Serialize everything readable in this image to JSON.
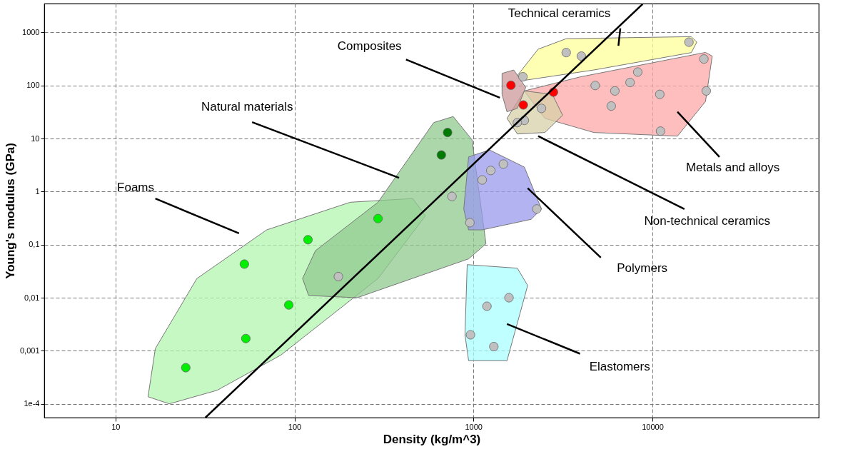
{
  "chart_data": {
    "type": "scatter",
    "xlabel": "Density (kg/m^3)",
    "ylabel": "Young's modulus (GPa)",
    "log": "xy",
    "grid": true,
    "xlim": [
      4,
      85000
    ],
    "xticks": [
      10,
      100,
      1000,
      10000
    ],
    "ylim": [
      5.5e-05,
      3500
    ],
    "yticks": [
      {
        "value": 0.0001,
        "label": "1e-4"
      },
      {
        "value": 0.001,
        "label": "0,001"
      },
      {
        "value": 0.01,
        "label": "0,01"
      },
      {
        "value": 0.1,
        "label": "0,1"
      },
      1,
      10,
      100,
      1000
    ],
    "series": [
      {
        "type": "area",
        "color": "#b3f5b0",
        "x": [
          15.2,
          16.7,
          28.5,
          70,
          205,
          458,
          539,
          293,
          84,
          37,
          20,
          15.2
        ],
        "values": [
          0.000136,
          0.0011,
          0.023,
          0.19,
          0.63,
          0.74,
          0.35,
          0.023,
          0.00083,
          0.00018,
          0.0001,
          0.000136
        ]
      },
      {
        "type": "area",
        "color": "#8fc98f",
        "x": [
          111,
          131,
          293,
          600,
          771,
          982,
          1175,
          940,
          224,
          120,
          111
        ],
        "values": [
          0.023,
          0.077,
          0.63,
          20,
          26,
          9.5,
          0.104,
          0.054,
          0.01,
          0.011,
          0.023
        ]
      },
      {
        "type": "area",
        "color": "#aaffff",
        "x": [
          923,
          1760,
          2010,
          1540,
          940,
          897,
          923
        ],
        "values": [
          0.042,
          0.036,
          0.017,
          0.00065,
          0.00065,
          0.002,
          0.042
        ]
      },
      {
        "type": "area",
        "color": "#9999ee",
        "x": [
          883,
          940,
          1230,
          1925,
          2400,
          2100,
          1120,
          940,
          883
        ],
        "values": [
          0.47,
          4.5,
          6.1,
          2.9,
          0.47,
          0.3,
          0.19,
          0.19,
          0.47
        ]
      },
      {
        "type": "area",
        "color": "#ffff99",
        "x": [
          1760,
          2300,
          3300,
          16500,
          17700,
          16500,
          4710,
          1925,
          1760
        ],
        "values": [
          154,
          484,
          762,
          833,
          656,
          417,
          196,
          125,
          154
        ]
      },
      {
        "type": "area",
        "color": "#ffa8a8",
        "x": [
          1925,
          3940,
          19800,
          21600,
          19800,
          13800,
          4710,
          2510,
          1925
        ],
        "values": [
          79,
          145,
          420,
          358,
          50,
          11.1,
          13,
          24,
          79
        ]
      },
      {
        "type": "area",
        "color": "#d8d0a8",
        "x": [
          1540,
          1925,
          2760,
          3150,
          2510,
          1760,
          1540
        ],
        "values": [
          24,
          79,
          68,
          27.5,
          13,
          12.2,
          24
        ]
      },
      {
        "type": "area",
        "color": "#cc9999",
        "x": [
          1445,
          1680,
          1960,
          1760,
          1540,
          1445,
          1445
        ],
        "values": [
          169,
          196,
          92,
          37,
          32,
          68,
          169
        ]
      },
      {
        "color": "#00ee00",
        "marker": "circle",
        "x": [
          24.7,
          52.5,
          119,
          293,
          93,
          53.5
        ],
        "values": [
          0.00048,
          0.043,
          0.124,
          0.31,
          0.0073,
          0.0017
        ]
      },
      {
        "color": "#007a00",
        "marker": "circle",
        "x": [
          662,
          717
        ],
        "values": [
          4.9,
          13
        ]
      },
      {
        "color": "#ff0000",
        "marker": "circle",
        "x": [
          1620,
          1900,
          2800
        ],
        "values": [
          101,
          43,
          75
        ]
      },
      {
        "color": "#c0c0c0",
        "marker": "circle",
        "x": [
          176,
          759,
          1250,
          1470,
          1120,
          955,
          2260,
          1190,
          1580,
          963,
          1300,
          1925,
          2400,
          1760,
          6170,
          19400,
          11100,
          20000,
          7500,
          5890,
          11000,
          4790,
          3300,
          4010,
          16000,
          1890,
          8280
        ],
        "values": [
          0.025,
          0.81,
          2.5,
          3.3,
          1.66,
          0.26,
          0.47,
          0.0069,
          0.01,
          0.002,
          0.0012,
          22,
          37,
          20,
          79,
          316,
          13.8,
          79,
          114,
          41,
          68,
          100,
          417,
          358,
          656,
          146,
          179
        ]
      },
      {
        "type": "line",
        "color": "#000000",
        "x": [
          31.8,
          8830
        ],
        "values": [
          5.5e-05,
          3440
        ]
      },
      {
        "type": "line",
        "color": "#000000",
        "x": [
          6620,
          6460
        ],
        "values": [
          1200,
          562
        ]
      },
      {
        "type": "line",
        "color": "#000000",
        "x": [
          420,
          1405
        ],
        "values": [
          308,
          59
        ]
      },
      {
        "type": "line",
        "color": "#000000",
        "x": [
          58,
          384
        ],
        "values": [
          20.4,
          1.82
        ]
      },
      {
        "type": "line",
        "color": "#000000",
        "x": [
          16.7,
          49
        ],
        "values": [
          0.74,
          0.163
        ]
      },
      {
        "type": "line",
        "color": "#000000",
        "x": [
          23700,
          13800
        ],
        "values": [
          4.5,
          32
        ]
      },
      {
        "type": "line",
        "color": "#000000",
        "x": [
          15100,
          2300
        ],
        "values": [
          0.47,
          11.1
        ]
      },
      {
        "type": "line",
        "color": "#000000",
        "x": [
          5150,
          2010
        ],
        "values": [
          0.057,
          1.16
        ]
      },
      {
        "type": "line",
        "color": "#000000",
        "x": [
          3940,
          1540
        ],
        "values": [
          0.00088,
          0.0032
        ]
      }
    ],
    "annotations": [
      "Technical ceramics",
      "Composites",
      "Natural materials",
      "Foams",
      "Metals and alloys",
      "Non-technical ceramics",
      "Polymers",
      "Elastomers"
    ]
  }
}
